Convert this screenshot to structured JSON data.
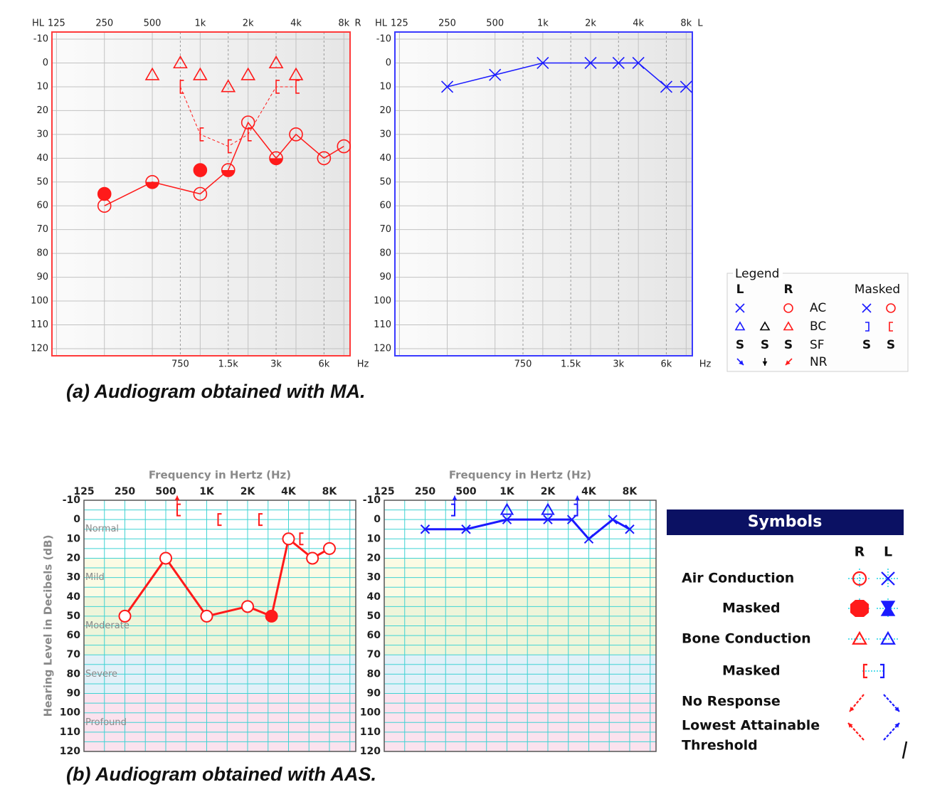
{
  "captions": [
    "(a) Audiogram obtained with MA.",
    "(b) Audiogram obtained with AAS."
  ],
  "chart_data": [
    {
      "type": "audiogram",
      "style": "ma",
      "ear": "R",
      "y_label": "HL",
      "x_unit": "Hz",
      "xscale": "log",
      "xlim": [
        117,
        8750
      ],
      "ylim": [
        -13,
        123
      ],
      "y_inverted": true,
      "color": "#ff1a1a",
      "frame_color": "#ff3a3a",
      "grid": true,
      "xticks": [
        125,
        250,
        500,
        {
          "value": 1000,
          "label": "1k"
        },
        {
          "value": 2000,
          "label": "2k"
        },
        {
          "value": 4000,
          "label": "4k"
        },
        {
          "value": 8000,
          "label": "8k"
        }
      ],
      "xticks_minor": [
        750,
        {
          "value": 1500,
          "label": "1.5k"
        },
        {
          "value": 3000,
          "label": "3k"
        },
        {
          "value": 6000,
          "label": "6k"
        }
      ],
      "yticks": [
        -10,
        0,
        10,
        20,
        30,
        40,
        50,
        60,
        70,
        80,
        90,
        100,
        110,
        120
      ],
      "series": [
        {
          "symbol": "circle",
          "color": "#ff1a1a",
          "line": "solid",
          "x": [
            250,
            500,
            1000,
            1500,
            2000,
            3000,
            4000,
            6000,
            8000
          ],
          "values": [
            60,
            50,
            55,
            45,
            25,
            40,
            30,
            40,
            35
          ],
          "fills": [
            "open",
            "half",
            "open",
            "half",
            "open",
            "half",
            "open",
            "open",
            "open"
          ]
        },
        {
          "symbol": "filled-circle",
          "color": "#ff1a1a",
          "x": [
            250,
            1000
          ],
          "values": [
            55,
            45
          ]
        },
        {
          "symbol": "triangle",
          "color": "#ff1a1a",
          "x": [
            500,
            750,
            1000,
            1500,
            2000,
            3000,
            4000
          ],
          "values": [
            5,
            0,
            5,
            10,
            5,
            0,
            5
          ]
        },
        {
          "symbol": "bracket-left",
          "color": "#ff1a1a",
          "line": "dashed",
          "x": [
            750,
            1000,
            1500,
            2000,
            3000,
            4000
          ],
          "values": [
            10,
            30,
            35,
            30,
            10,
            10
          ]
        }
      ]
    },
    {
      "type": "audiogram",
      "style": "ma",
      "ear": "L",
      "y_label": "HL",
      "x_unit": "Hz",
      "xscale": "log",
      "xlim": [
        117,
        8750
      ],
      "ylim": [
        -13,
        123
      ],
      "y_inverted": true,
      "color": "#1a1aff",
      "frame_color": "#3a3aff",
      "grid": true,
      "xticks": [
        125,
        250,
        500,
        {
          "value": 1000,
          "label": "1k"
        },
        {
          "value": 2000,
          "label": "2k"
        },
        {
          "value": 4000,
          "label": "4k"
        },
        {
          "value": 8000,
          "label": "8k"
        }
      ],
      "xticks_minor": [
        750,
        {
          "value": 1500,
          "label": "1.5k"
        },
        {
          "value": 3000,
          "label": "3k"
        },
        {
          "value": 6000,
          "label": "6k"
        }
      ],
      "yticks": [
        -10,
        0,
        10,
        20,
        30,
        40,
        50,
        60,
        70,
        80,
        90,
        100,
        110,
        120
      ],
      "series": [
        {
          "symbol": "x",
          "color": "#1a1aff",
          "line": "solid",
          "x": [
            250,
            500,
            1000,
            2000,
            3000,
            4000,
            6000,
            8000
          ],
          "values": [
            10,
            5,
            0,
            0,
            0,
            0,
            10,
            10
          ]
        }
      ]
    },
    {
      "type": "audiogram",
      "style": "aas",
      "title": "Frequency in Hertz (Hz)",
      "y_label": "Hearing Level in Decibels (dB)",
      "xscale": "log",
      "xlim": [
        125,
        12500
      ],
      "ylim": [
        -10,
        120
      ],
      "y_inverted": true,
      "color": "#ff1a1a",
      "frame_color": "#555555",
      "grid": true,
      "grid_minor": true,
      "xticks": [
        125,
        250,
        500,
        {
          "value": 1000,
          "label": "1K"
        },
        {
          "value": 2000,
          "label": "2K"
        },
        {
          "value": 4000,
          "label": "4K"
        },
        {
          "value": 8000,
          "label": "8K"
        }
      ],
      "yticks": [
        -10,
        0,
        10,
        20,
        30,
        40,
        50,
        60,
        70,
        80,
        90,
        100,
        110,
        120
      ],
      "bands": [
        {
          "label": "Normal",
          "from": -10,
          "to": 20,
          "color": "#ffffff"
        },
        {
          "label": "Mild",
          "from": 20,
          "to": 40,
          "color": "#fbfbe4"
        },
        {
          "label": "Moderate",
          "from": 40,
          "to": 70,
          "color": "#eef5da"
        },
        {
          "label": "Severe",
          "from": 70,
          "to": 90,
          "color": "#e2f0f8"
        },
        {
          "label": "Profound",
          "from": 90,
          "to": 120,
          "color": "#fbe2ee"
        }
      ],
      "series": [
        {
          "symbol": "circle",
          "color": "#ff1a1a",
          "line": "solid",
          "x": [
            250,
            500,
            1000,
            2000,
            3000,
            4000,
            6000,
            8000
          ],
          "values": [
            50,
            20,
            50,
            45,
            50,
            10,
            20,
            15
          ],
          "fills": [
            "open",
            "open",
            "open",
            "open",
            "filled",
            "open",
            "open",
            "open"
          ]
        },
        {
          "symbol": "bracket-left",
          "color": "#ff1a1a",
          "x": [
            500,
            1000,
            2000,
            4000
          ],
          "values": [
            -5,
            0,
            0,
            10
          ],
          "arrows": [
            true,
            false,
            false,
            false
          ]
        }
      ]
    },
    {
      "type": "audiogram",
      "style": "aas",
      "title": "Frequency in Hertz (Hz)",
      "xscale": "log",
      "xlim": [
        125,
        12500
      ],
      "ylim": [
        -10,
        120
      ],
      "y_inverted": true,
      "color": "#1a1aff",
      "frame_color": "#555555",
      "grid": true,
      "grid_minor": true,
      "xticks": [
        125,
        250,
        500,
        {
          "value": 1000,
          "label": "1K"
        },
        {
          "value": 2000,
          "label": "2K"
        },
        {
          "value": 4000,
          "label": "4K"
        },
        {
          "value": 8000,
          "label": "8K"
        }
      ],
      "yticks": [
        -10,
        0,
        10,
        20,
        30,
        40,
        50,
        60,
        70,
        80,
        90,
        100,
        110,
        120
      ],
      "bands": [
        {
          "from": -10,
          "to": 20,
          "color": "#ffffff"
        },
        {
          "from": 20,
          "to": 40,
          "color": "#fbfbe4"
        },
        {
          "from": 40,
          "to": 70,
          "color": "#eef5da"
        },
        {
          "from": 70,
          "to": 90,
          "color": "#e2f0f8"
        },
        {
          "from": 90,
          "to": 120,
          "color": "#fbe2ee"
        }
      ],
      "series": [
        {
          "symbol": "x",
          "color": "#1a1aff",
          "line": "solid",
          "x": [
            250,
            500,
            1000,
            2000,
            3000,
            4000,
            6000,
            8000
          ],
          "values": [
            5,
            5,
            0,
            0,
            0,
            10,
            0,
            5
          ]
        },
        {
          "symbol": "triangle",
          "color": "#1a1aff",
          "x": [
            1000,
            2000
          ],
          "values": [
            -5,
            -5
          ]
        },
        {
          "symbol": "bracket-right",
          "color": "#1a1aff",
          "x": [
            500,
            4000
          ],
          "values": [
            -5,
            -5
          ],
          "arrows": [
            true,
            true
          ]
        }
      ]
    }
  ],
  "legend_a": {
    "title": "Legend",
    "left": "L",
    "right": "R",
    "masked": "Masked",
    "rows": [
      "AC",
      "BC",
      "SF",
      "NR"
    ],
    "sf_symbol": "S",
    "colors": {
      "left": "#1a1aff",
      "right": "#ff1a1a",
      "both": "#000000"
    }
  },
  "legend_b": {
    "title": "Symbols",
    "right": "R",
    "left": "L",
    "header_color": "#0b1163",
    "rows": [
      "Air Conduction",
      "Masked",
      "Bone Conduction",
      "Masked",
      "No Response",
      "Lowest Attainable",
      "Threshold"
    ],
    "colors": {
      "right": "#ff1a1a",
      "left": "#1a1aff",
      "guide": "#22d3e6"
    }
  }
}
